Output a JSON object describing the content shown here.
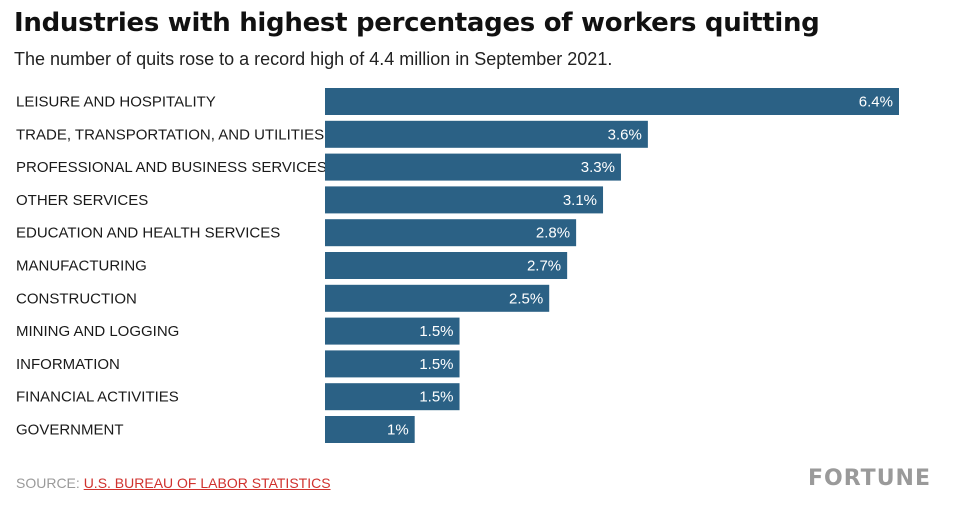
{
  "title": "Industries with highest percentages of workers quitting",
  "subtitle": "The number of quits rose to a record high of 4.4 million in September 2021.",
  "source": {
    "label": "SOURCE: ",
    "link_text": "U.S. BUREAU OF LABOR STATISTICS"
  },
  "brand": "FORTUNE",
  "colors": {
    "bar": "#2b6185",
    "bar_label": "#ffffff",
    "category_label": "#1a1a1a"
  },
  "chart_data": {
    "type": "bar",
    "orientation": "horizontal",
    "categories": [
      "LEISURE AND HOSPITALITY",
      "TRADE, TRANSPORTATION, AND UTILITIES",
      "PROFESSIONAL AND BUSINESS SERVICES",
      "OTHER SERVICES",
      "EDUCATION AND HEALTH SERVICES",
      "MANUFACTURING",
      "CONSTRUCTION",
      "MINING AND LOGGING",
      "INFORMATION",
      "FINANCIAL ACTIVITIES",
      "GOVERNMENT"
    ],
    "values": [
      6.4,
      3.6,
      3.3,
      3.1,
      2.8,
      2.7,
      2.5,
      1.5,
      1.5,
      1.5,
      1
    ],
    "value_labels": [
      "6.4%",
      "3.6%",
      "3.3%",
      "3.1%",
      "2.8%",
      "2.7%",
      "2.5%",
      "1.5%",
      "1.5%",
      "1.5%",
      "1%"
    ],
    "xlim": [
      0,
      6.4
    ],
    "grid": false,
    "legend": "none"
  }
}
